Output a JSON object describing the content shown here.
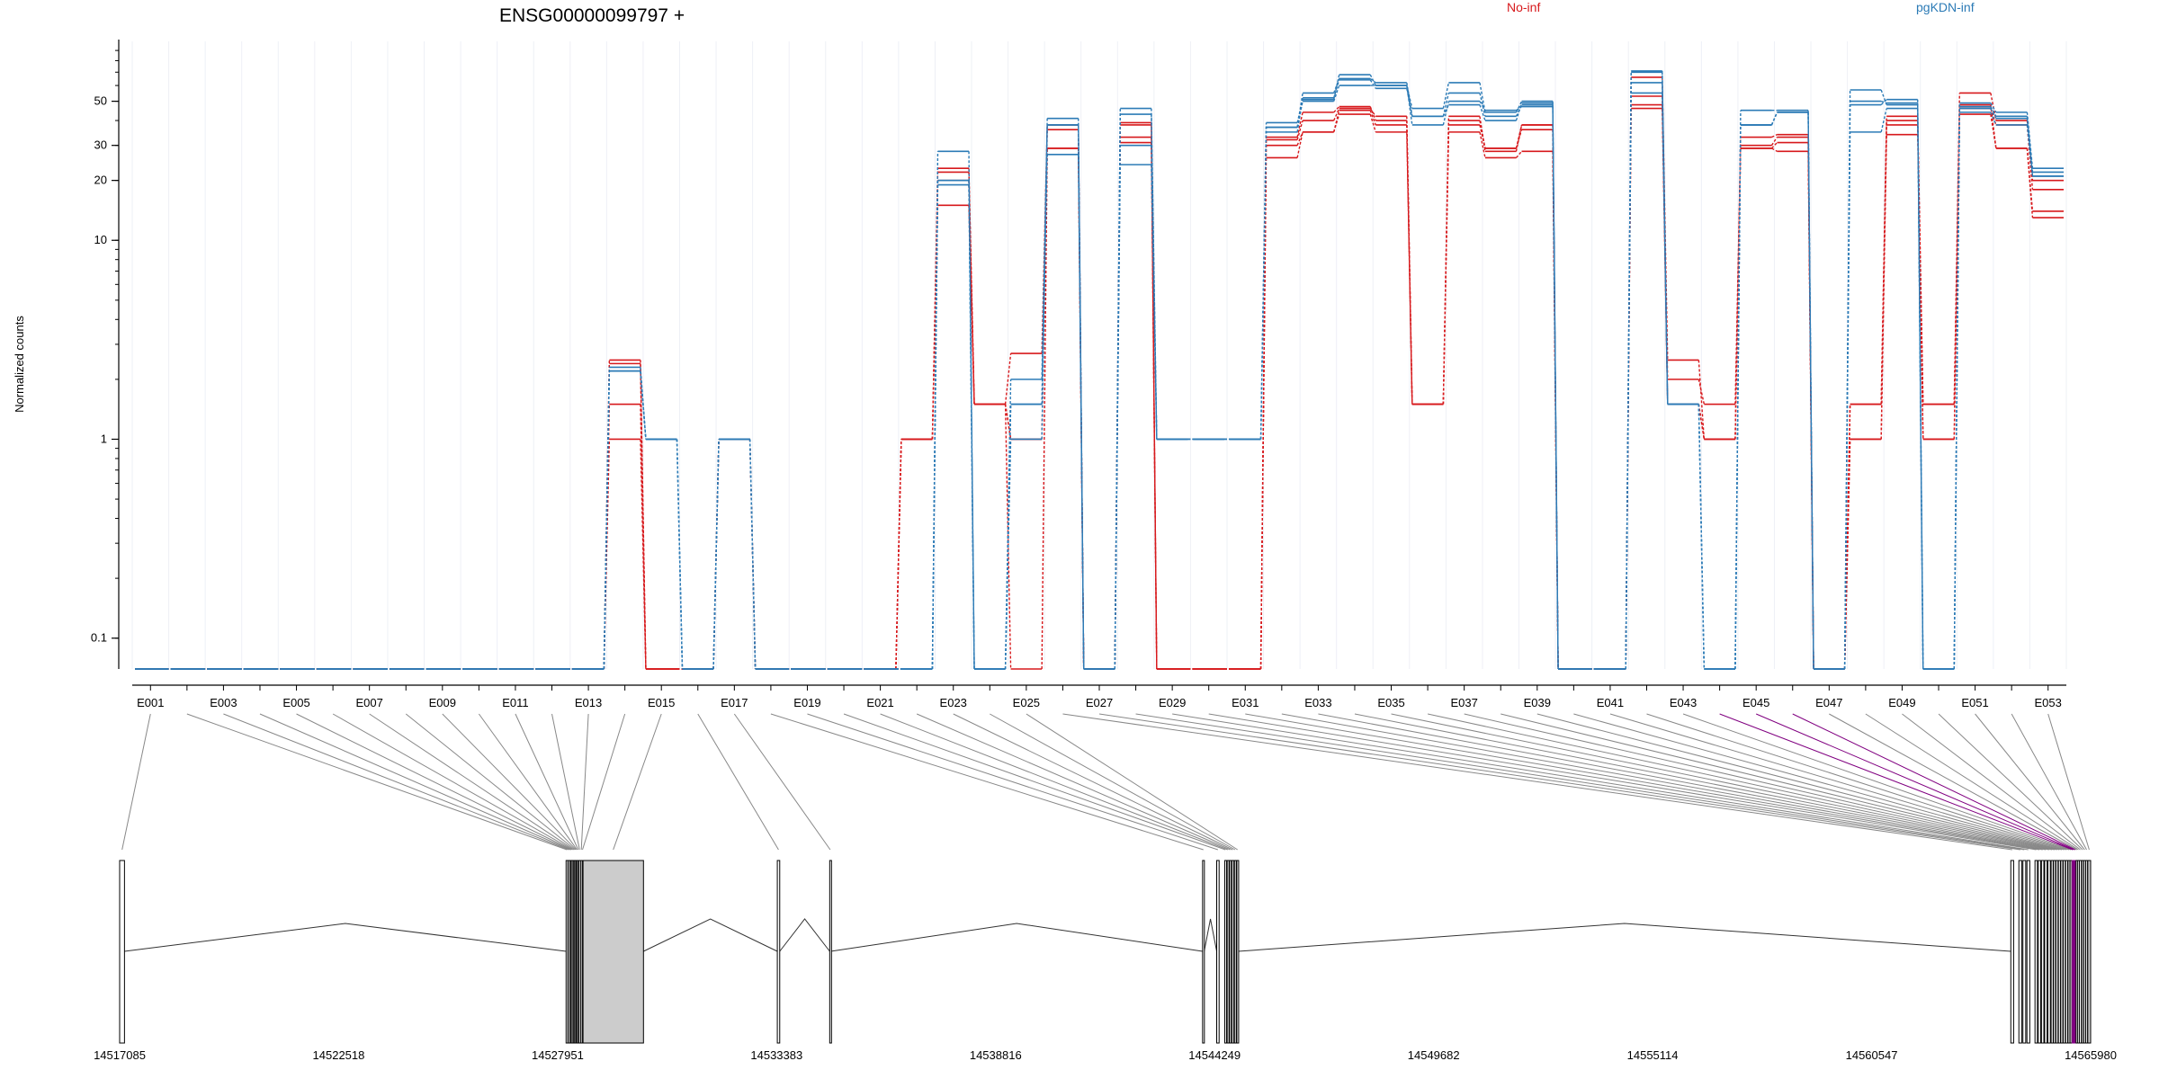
{
  "chart_data": {
    "type": "line",
    "title": "ENSG00000099797 +",
    "ylabel": "Normalized counts",
    "xlabel": "",
    "yscale": "log",
    "ylim": [
      0.07,
      100
    ],
    "yticks": [
      "0.1",
      "1",
      "10",
      "20",
      "30",
      "50"
    ],
    "ytick_values": [
      0.1,
      1,
      10,
      20,
      30,
      50
    ],
    "exon_labels": [
      "E001",
      "E003",
      "E005",
      "E007",
      "E009",
      "E011",
      "E013",
      "E015",
      "E017",
      "E019",
      "E021",
      "E023",
      "E025",
      "E027",
      "E029",
      "E031",
      "E033",
      "E035",
      "E037",
      "E039",
      "E041",
      "E043",
      "E045",
      "E047",
      "E049",
      "E051",
      "E053"
    ],
    "exons": [
      "E001",
      "E002",
      "E003",
      "E004",
      "E005",
      "E006",
      "E007",
      "E008",
      "E009",
      "E010",
      "E011",
      "E012",
      "E013",
      "E014",
      "E015",
      "E016",
      "E017",
      "E018",
      "E019",
      "E020",
      "E021",
      "E022",
      "E023",
      "E024",
      "E025",
      "E026",
      "E027",
      "E028",
      "E029",
      "E030",
      "E031",
      "E032",
      "E033",
      "E034",
      "E035",
      "E036",
      "E037",
      "E038",
      "E039",
      "E040",
      "E041",
      "E042",
      "E043",
      "E044",
      "E045",
      "E046",
      "E047",
      "E048",
      "E049",
      "E050",
      "E051",
      "E052",
      "E053"
    ],
    "highlighted_exons": [
      "E044",
      "E045",
      "E046"
    ],
    "series": [
      {
        "name": "No-inf",
        "group": "No-inf",
        "color": "#d7191c",
        "values": [
          0,
          0,
          0,
          0,
          0,
          0,
          0,
          0,
          0,
          0,
          0,
          0,
          0,
          2.4,
          0,
          0,
          1,
          0,
          0,
          0,
          0,
          1,
          22,
          1.5,
          2.7,
          38,
          0,
          38,
          0,
          0,
          0,
          32,
          40,
          46,
          42,
          1.5,
          42,
          28,
          38,
          0,
          0,
          48,
          2,
          1.5,
          30,
          33,
          0,
          1.5,
          38,
          1.5,
          46,
          38,
          18
        ]
      },
      {
        "name": "No-inf",
        "group": "No-inf",
        "color": "#d7191c",
        "values": [
          0,
          0,
          0,
          0,
          0,
          0,
          0,
          0,
          0,
          0,
          0,
          0,
          0,
          1.5,
          0,
          0,
          1,
          0,
          0,
          0,
          0,
          1,
          20,
          1.5,
          1,
          29,
          0,
          33,
          0,
          0,
          0,
          30,
          35,
          45,
          38,
          1.5,
          38,
          29,
          38,
          0,
          0,
          53,
          1.5,
          1,
          29,
          31,
          0,
          1,
          34,
          1,
          48,
          29,
          14
        ]
      },
      {
        "name": "No-inf",
        "group": "No-inf",
        "color": "#d7191c",
        "values": [
          0,
          0,
          0,
          0,
          0,
          0,
          0,
          0,
          0,
          0,
          0,
          0,
          0,
          1,
          0,
          0,
          1,
          0,
          0,
          0,
          0,
          1,
          15,
          1.5,
          0,
          29,
          0,
          31,
          0,
          0,
          0,
          26,
          35,
          43,
          35,
          1.5,
          35,
          26,
          28,
          0,
          0,
          46,
          1.5,
          1,
          29,
          28,
          0,
          1,
          40,
          1,
          43,
          29,
          13
        ]
      },
      {
        "name": "No-inf",
        "group": "No-inf",
        "color": "#d7191c",
        "values": [
          0,
          0,
          0,
          0,
          0,
          0,
          0,
          0,
          0,
          0,
          0,
          0,
          0,
          2.5,
          0,
          0,
          1,
          0,
          0,
          0,
          0,
          1,
          23,
          1.5,
          1,
          36,
          0,
          39,
          0,
          0,
          0,
          33,
          44,
          47,
          40,
          1.5,
          40,
          29,
          36,
          0,
          0,
          66,
          2.5,
          1,
          33,
          34,
          0,
          1.5,
          42,
          1.5,
          55,
          40,
          20
        ]
      },
      {
        "name": "pgKDN-inf",
        "group": "pgKDN-inf",
        "color": "#2c7bb6",
        "values": [
          0,
          0,
          0,
          0,
          0,
          0,
          0,
          0,
          0,
          0,
          0,
          0,
          0,
          2.3,
          1,
          0,
          1,
          0,
          0,
          0,
          0,
          0,
          28,
          0,
          1.5,
          41,
          0,
          43,
          1,
          1,
          1,
          39,
          51,
          68,
          60,
          46,
          62,
          44,
          50,
          0,
          0,
          71,
          1.5,
          0,
          45,
          45,
          0,
          57,
          48,
          0,
          49,
          44,
          23
        ]
      },
      {
        "name": "pgKDN-inf",
        "group": "pgKDN-inf",
        "color": "#2c7bb6",
        "values": [
          0,
          0,
          0,
          0,
          0,
          0,
          0,
          0,
          0,
          0,
          0,
          0,
          0,
          2.2,
          1,
          0,
          1,
          0,
          0,
          0,
          0,
          0,
          20,
          0,
          1,
          38,
          0,
          46,
          1,
          1,
          1,
          37,
          55,
          65,
          62,
          42,
          55,
          42,
          48,
          0,
          0,
          70,
          1.5,
          0,
          38,
          44,
          0,
          48,
          51,
          0,
          47,
          42,
          22
        ]
      },
      {
        "name": "pgKDN-inf",
        "group": "pgKDN-inf",
        "color": "#2c7bb6",
        "values": [
          0,
          0,
          0,
          0,
          0,
          0,
          0,
          0,
          0,
          0,
          0,
          0,
          0,
          2.2,
          1,
          0,
          1,
          0,
          0,
          0,
          0,
          0,
          20,
          0,
          2,
          38,
          0,
          30,
          1,
          1,
          1,
          35,
          52,
          64,
          58,
          42,
          48,
          40,
          49,
          0,
          0,
          55,
          1.5,
          0,
          38,
          44,
          0,
          35,
          46,
          0,
          46,
          41,
          21
        ]
      },
      {
        "name": "pgKDN-inf",
        "group": "pgKDN-inf",
        "color": "#2c7bb6",
        "values": [
          0,
          0,
          0,
          0,
          0,
          0,
          0,
          0,
          0,
          0,
          0,
          0,
          0,
          2.2,
          1,
          0,
          1,
          0,
          0,
          0,
          0,
          0,
          19,
          0,
          1.5,
          27,
          0,
          24,
          1,
          1,
          1,
          37,
          50,
          60,
          60,
          38,
          50,
          45,
          47,
          0,
          0,
          62,
          1.5,
          0,
          38,
          44,
          0,
          50,
          49,
          0,
          44,
          38,
          21
        ]
      }
    ],
    "gene_model": {
      "coord_labels": [
        "14517085",
        "14522518",
        "14527951",
        "14533383",
        "14538816",
        "14544249",
        "14549682",
        "14555114",
        "14560547",
        "14565980"
      ],
      "coord_values": [
        14517085,
        14522518,
        14527951,
        14533383,
        14538816,
        14544249,
        14549682,
        14555114,
        14560547,
        14565980
      ],
      "highlight_color": "#800080"
    },
    "legend": {
      "position": "top"
    }
  }
}
